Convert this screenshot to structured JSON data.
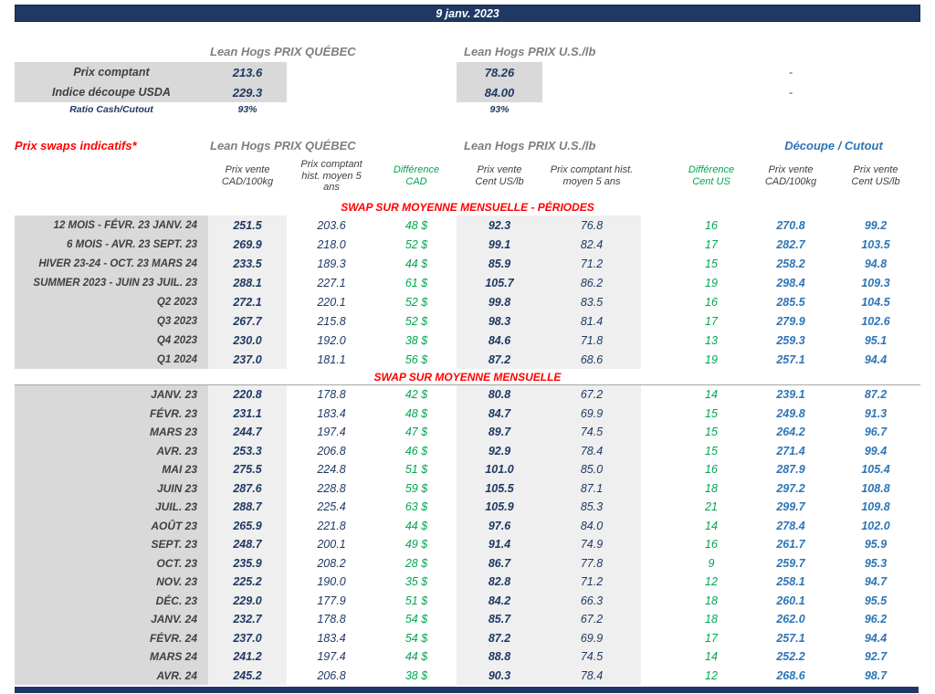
{
  "header": {
    "date": "9 janv. 2023"
  },
  "spot": {
    "quebec_header": "Lean Hogs PRIX QUÉBEC",
    "us_header": "Lean Hogs PRIX U.S./lb",
    "rows": [
      {
        "label": "Prix comptant",
        "quebec": "213.6",
        "us": "78.26",
        "note": "-"
      },
      {
        "label": "Indice découpe USDA",
        "quebec": "229.3",
        "us": "84.00",
        "note": "-"
      },
      {
        "label": "Ratio Cash/Cutout",
        "quebec": "93%",
        "us": "93%",
        "note": ""
      }
    ]
  },
  "swaps": {
    "title": "Prix swaps indicatifs*",
    "quebec_group": "Lean Hogs PRIX QUÉBEC",
    "us_group": "Lean Hogs PRIX U.S./lb",
    "cutout_group": "Découpe / Cutout",
    "columns": [
      "Prix vente\nCAD/100kg",
      "Prix comptant\nhist. moyen 5\nans",
      "Différence\nCAD",
      "Prix vente\nCent US/lb",
      "Prix comptant hist.\nmoyen 5 ans",
      "Différence\nCent US",
      "Prix vente\nCAD/100kg",
      "Prix vente\nCent US/lb"
    ],
    "periods": {
      "header": "SWAP SUR MOYENNE MENSUELLE - PÉRIODES",
      "rows": [
        {
          "label": "12 MOIS - FÉVR. 23 JANV. 24",
          "cad_sell": "251.5",
          "cad_hist": "203.6",
          "cad_diff": "48 $",
          "us_sell": "92.3",
          "us_hist": "76.8",
          "us_diff": "16",
          "cutout_cad": "270.8",
          "cutout_us": "99.2"
        },
        {
          "label": "6 MOIS - AVR. 23 SEPT. 23",
          "cad_sell": "269.9",
          "cad_hist": "218.0",
          "cad_diff": "52 $",
          "us_sell": "99.1",
          "us_hist": "82.4",
          "us_diff": "17",
          "cutout_cad": "282.7",
          "cutout_us": "103.5"
        },
        {
          "label": "HIVER 23-24 -  OCT. 23 MARS 24",
          "cad_sell": "233.5",
          "cad_hist": "189.3",
          "cad_diff": "44 $",
          "us_sell": "85.9",
          "us_hist": "71.2",
          "us_diff": "15",
          "cutout_cad": "258.2",
          "cutout_us": "94.8"
        },
        {
          "label": "SUMMER 2023 - JUIN 23 JUIL. 23",
          "cad_sell": "288.1",
          "cad_hist": "227.1",
          "cad_diff": "61 $",
          "us_sell": "105.7",
          "us_hist": "86.2",
          "us_diff": "19",
          "cutout_cad": "298.4",
          "cutout_us": "109.3"
        },
        {
          "label": "Q2 2023",
          "cad_sell": "272.1",
          "cad_hist": "220.1",
          "cad_diff": "52 $",
          "us_sell": "99.8",
          "us_hist": "83.5",
          "us_diff": "16",
          "cutout_cad": "285.5",
          "cutout_us": "104.5"
        },
        {
          "label": "Q3 2023",
          "cad_sell": "267.7",
          "cad_hist": "215.8",
          "cad_diff": "52 $",
          "us_sell": "98.3",
          "us_hist": "81.4",
          "us_diff": "17",
          "cutout_cad": "279.9",
          "cutout_us": "102.6"
        },
        {
          "label": "Q4 2023",
          "cad_sell": "230.0",
          "cad_hist": "192.0",
          "cad_diff": "38 $",
          "us_sell": "84.6",
          "us_hist": "71.8",
          "us_diff": "13",
          "cutout_cad": "259.3",
          "cutout_us": "95.1"
        },
        {
          "label": "Q1 2024",
          "cad_sell": "237.0",
          "cad_hist": "181.1",
          "cad_diff": "56 $",
          "us_sell": "87.2",
          "us_hist": "68.6",
          "us_diff": "19",
          "cutout_cad": "257.1",
          "cutout_us": "94.4"
        }
      ]
    },
    "monthly": {
      "header": "SWAP SUR MOYENNE MENSUELLE",
      "rows": [
        {
          "label": "JANV. 23",
          "cad_sell": "220.8",
          "cad_hist": "178.8",
          "cad_diff": "42 $",
          "us_sell": "80.8",
          "us_hist": "67.2",
          "us_diff": "14",
          "cutout_cad": "239.1",
          "cutout_us": "87.2"
        },
        {
          "label": "FÉVR. 23",
          "cad_sell": "231.1",
          "cad_hist": "183.4",
          "cad_diff": "48 $",
          "us_sell": "84.7",
          "us_hist": "69.9",
          "us_diff": "15",
          "cutout_cad": "249.8",
          "cutout_us": "91.3"
        },
        {
          "label": "MARS 23",
          "cad_sell": "244.7",
          "cad_hist": "197.4",
          "cad_diff": "47 $",
          "us_sell": "89.7",
          "us_hist": "74.5",
          "us_diff": "15",
          "cutout_cad": "264.2",
          "cutout_us": "96.7"
        },
        {
          "label": "AVR. 23",
          "cad_sell": "253.3",
          "cad_hist": "206.8",
          "cad_diff": "46 $",
          "us_sell": "92.9",
          "us_hist": "78.4",
          "us_diff": "15",
          "cutout_cad": "271.4",
          "cutout_us": "99.4"
        },
        {
          "label": "MAI 23",
          "cad_sell": "275.5",
          "cad_hist": "224.8",
          "cad_diff": "51 $",
          "us_sell": "101.0",
          "us_hist": "85.0",
          "us_diff": "16",
          "cutout_cad": "287.9",
          "cutout_us": "105.4"
        },
        {
          "label": "JUIN 23",
          "cad_sell": "287.6",
          "cad_hist": "228.8",
          "cad_diff": "59 $",
          "us_sell": "105.5",
          "us_hist": "87.1",
          "us_diff": "18",
          "cutout_cad": "297.2",
          "cutout_us": "108.8"
        },
        {
          "label": "JUIL. 23",
          "cad_sell": "288.7",
          "cad_hist": "225.4",
          "cad_diff": "63 $",
          "us_sell": "105.9",
          "us_hist": "85.3",
          "us_diff": "21",
          "cutout_cad": "299.7",
          "cutout_us": "109.8"
        },
        {
          "label": "AOÛT 23",
          "cad_sell": "265.9",
          "cad_hist": "221.8",
          "cad_diff": "44 $",
          "us_sell": "97.6",
          "us_hist": "84.0",
          "us_diff": "14",
          "cutout_cad": "278.4",
          "cutout_us": "102.0"
        },
        {
          "label": "SEPT. 23",
          "cad_sell": "248.7",
          "cad_hist": "200.1",
          "cad_diff": "49 $",
          "us_sell": "91.4",
          "us_hist": "74.9",
          "us_diff": "16",
          "cutout_cad": "261.7",
          "cutout_us": "95.9"
        },
        {
          "label": "OCT. 23",
          "cad_sell": "235.9",
          "cad_hist": "208.2",
          "cad_diff": "28 $",
          "us_sell": "86.7",
          "us_hist": "77.8",
          "us_diff": "9",
          "cutout_cad": "259.7",
          "cutout_us": "95.3"
        },
        {
          "label": "NOV. 23",
          "cad_sell": "225.2",
          "cad_hist": "190.0",
          "cad_diff": "35 $",
          "us_sell": "82.8",
          "us_hist": "71.2",
          "us_diff": "12",
          "cutout_cad": "258.1",
          "cutout_us": "94.7"
        },
        {
          "label": "DÉC. 23",
          "cad_sell": "229.0",
          "cad_hist": "177.9",
          "cad_diff": "51 $",
          "us_sell": "84.2",
          "us_hist": "66.3",
          "us_diff": "18",
          "cutout_cad": "260.1",
          "cutout_us": "95.5"
        },
        {
          "label": "JANV. 24",
          "cad_sell": "232.7",
          "cad_hist": "178.8",
          "cad_diff": "54 $",
          "us_sell": "85.7",
          "us_hist": "67.2",
          "us_diff": "18",
          "cutout_cad": "262.0",
          "cutout_us": "96.2"
        },
        {
          "label": "FÉVR. 24",
          "cad_sell": "237.0",
          "cad_hist": "183.4",
          "cad_diff": "54 $",
          "us_sell": "87.2",
          "us_hist": "69.9",
          "us_diff": "17",
          "cutout_cad": "257.1",
          "cutout_us": "94.4"
        },
        {
          "label": "MARS 24",
          "cad_sell": "241.2",
          "cad_hist": "197.4",
          "cad_diff": "44 $",
          "us_sell": "88.8",
          "us_hist": "74.5",
          "us_diff": "14",
          "cutout_cad": "252.2",
          "cutout_us": "92.7"
        },
        {
          "label": "AVR. 24",
          "cad_sell": "245.2",
          "cad_hist": "206.8",
          "cad_diff": "38 $",
          "us_sell": "90.3",
          "us_hist": "78.4",
          "us_diff": "12",
          "cutout_cad": "268.6",
          "cutout_us": "98.7"
        }
      ]
    }
  }
}
